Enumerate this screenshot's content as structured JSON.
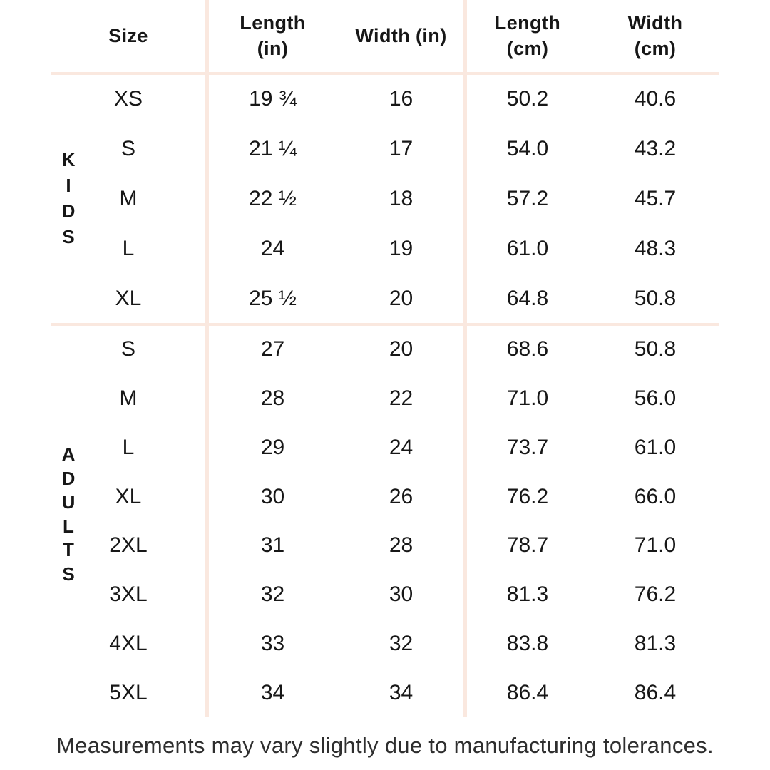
{
  "chart_data": {
    "type": "table",
    "columns": [
      "Size",
      "Length (in)",
      "Width (in)",
      "Length (cm)",
      "Width (cm)"
    ],
    "row_groups": [
      {
        "group": "KIDS",
        "rows": [
          {
            "size": "XS",
            "length_in": "19 ¾",
            "width_in": "16",
            "length_cm": "50.2",
            "width_cm": "40.6"
          },
          {
            "size": "S",
            "length_in": "21 ¼",
            "width_in": "17",
            "length_cm": "54.0",
            "width_cm": "43.2"
          },
          {
            "size": "M",
            "length_in": "22 ½",
            "width_in": "18",
            "length_cm": "57.2",
            "width_cm": "45.7"
          },
          {
            "size": "L",
            "length_in": "24",
            "width_in": "19",
            "length_cm": "61.0",
            "width_cm": "48.3"
          },
          {
            "size": "XL",
            "length_in": "25 ½",
            "width_in": "20",
            "length_cm": "64.8",
            "width_cm": "50.8"
          }
        ]
      },
      {
        "group": "ADULTS",
        "rows": [
          {
            "size": "S",
            "length_in": "27",
            "width_in": "20",
            "length_cm": "68.6",
            "width_cm": "50.8"
          },
          {
            "size": "M",
            "length_in": "28",
            "width_in": "22",
            "length_cm": "71.0",
            "width_cm": "56.0"
          },
          {
            "size": "L",
            "length_in": "29",
            "width_in": "24",
            "length_cm": "73.7",
            "width_cm": "61.0"
          },
          {
            "size": "XL",
            "length_in": "30",
            "width_in": "26",
            "length_cm": "76.2",
            "width_cm": "66.0"
          },
          {
            "size": "2XL",
            "length_in": "31",
            "width_in": "28",
            "length_cm": "78.7",
            "width_cm": "71.0"
          },
          {
            "size": "3XL",
            "length_in": "32",
            "width_in": "30",
            "length_cm": "81.3",
            "width_cm": "76.2"
          },
          {
            "size": "4XL",
            "length_in": "33",
            "width_in": "32",
            "length_cm": "83.8",
            "width_cm": "81.3"
          },
          {
            "size": "5XL",
            "length_in": "34",
            "width_in": "34",
            "length_cm": "86.4",
            "width_cm": "86.4"
          }
        ]
      }
    ],
    "footnote": "Measurements may vary slightly due to manufacturing tolerances."
  },
  "header": {
    "size": "Size",
    "length_in": "Length\n(in)",
    "width_in": "Width (in)",
    "length_cm": "Length\n(cm)",
    "width_cm": "Width\n(cm)"
  },
  "footer": {
    "note": "Measurements may vary slightly due to manufacturing tolerances."
  },
  "colors": {
    "background": "#ffffff",
    "grid_line": "#fae8df",
    "text": "#171717"
  }
}
